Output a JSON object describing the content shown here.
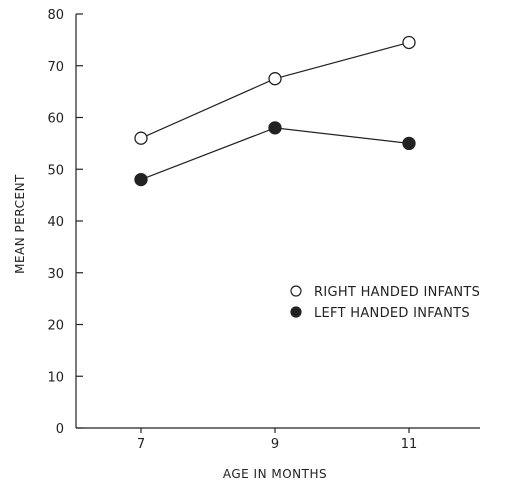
{
  "chart_data": {
    "type": "line",
    "title": "",
    "xlabel": "AGE IN MONTHS",
    "ylabel": "MEAN PERCENT",
    "x": [
      7,
      9,
      11
    ],
    "x_tick_labels": [
      "7",
      "9",
      "11"
    ],
    "xlim": [
      5,
      13
    ],
    "ylim": [
      0,
      80
    ],
    "y_ticks": [
      0,
      10,
      20,
      30,
      40,
      50,
      60,
      70,
      80
    ],
    "y_tick_labels": [
      "0",
      "10",
      "20",
      "30",
      "40",
      "50",
      "60",
      "70",
      "80"
    ],
    "grid": false,
    "legend_position": "right",
    "series": [
      {
        "name": "RIGHT HANDED INFANTS",
        "marker": "open-circle",
        "values": [
          56,
          67.5,
          74.5
        ]
      },
      {
        "name": "LEFT HANDED INFANTS",
        "marker": "filled-circle",
        "values": [
          48,
          58,
          55
        ]
      }
    ],
    "colors": {
      "ink": "#222222",
      "background": "#ffffff"
    }
  }
}
